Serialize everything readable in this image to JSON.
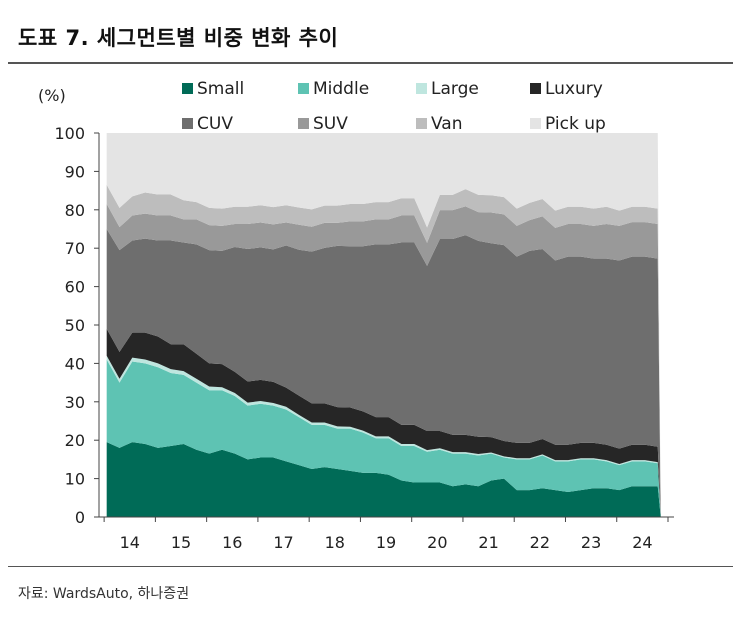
{
  "title": "도표 7. 세그먼트별 비중 변화 추이",
  "source": "자료: WardsAuto, 하나증권",
  "chart_data": {
    "type": "area",
    "stacked": true,
    "ylabel": "(%)",
    "ylim": [
      0,
      100
    ],
    "yticks": [
      0,
      10,
      20,
      30,
      40,
      50,
      60,
      70,
      80,
      90,
      100
    ],
    "xticks": [
      "14",
      "15",
      "16",
      "17",
      "18",
      "19",
      "20",
      "21",
      "22",
      "23",
      "24"
    ],
    "x": [
      2014.0,
      2014.25,
      2014.5,
      2014.75,
      2015.0,
      2015.25,
      2015.5,
      2015.75,
      2016.0,
      2016.25,
      2016.5,
      2016.75,
      2017.0,
      2017.25,
      2017.5,
      2017.75,
      2018.0,
      2018.25,
      2018.5,
      2018.75,
      2019.0,
      2019.25,
      2019.5,
      2019.75,
      2020.0,
      2020.25,
      2020.5,
      2020.75,
      2021.0,
      2021.25,
      2021.5,
      2021.75,
      2022.0,
      2022.25,
      2022.5,
      2022.75,
      2023.0,
      2023.25,
      2023.5,
      2023.75,
      2024.0,
      2024.25,
      2024.5,
      2024.75
    ],
    "legend": {
      "placement": "top",
      "columns": 4
    },
    "grid": false,
    "series": [
      {
        "name": "Small",
        "color": "#006b57",
        "values": [
          19.5,
          18.0,
          19.5,
          19.0,
          18.0,
          18.5,
          19.0,
          17.5,
          16.5,
          17.5,
          16.5,
          15.0,
          15.5,
          15.5,
          14.5,
          13.5,
          12.5,
          13.0,
          12.5,
          12.0,
          11.5,
          11.5,
          11.0,
          9.5,
          9.0,
          9.0,
          9.0,
          8.0,
          8.5,
          8.0,
          9.5,
          10.0,
          7.0,
          7.0,
          7.5,
          7.0,
          6.5,
          7.0,
          7.5,
          7.5,
          7.0,
          8.0,
          8.0,
          8.0
        ]
      },
      {
        "name": "Middle",
        "color": "#5ec3b3",
        "values": [
          21.5,
          17.0,
          21.0,
          21.0,
          21.0,
          19.0,
          18.0,
          17.5,
          16.5,
          15.5,
          15.0,
          14.0,
          14.0,
          13.5,
          13.5,
          12.5,
          11.5,
          11.0,
          10.5,
          11.0,
          10.5,
          9.0,
          9.5,
          9.0,
          9.5,
          8.0,
          8.5,
          8.5,
          8.0,
          8.0,
          7.0,
          5.5,
          8.0,
          8.0,
          8.5,
          7.5,
          8.0,
          8.0,
          7.5,
          7.0,
          6.5,
          6.5,
          6.5,
          6.0
        ]
      },
      {
        "name": "Large",
        "color": "#bfe6df",
        "values": [
          1.0,
          1.0,
          1.0,
          1.0,
          1.0,
          1.0,
          1.0,
          1.0,
          1.0,
          0.8,
          0.8,
          0.8,
          0.7,
          0.7,
          0.7,
          0.6,
          0.6,
          0.6,
          0.6,
          0.5,
          0.5,
          0.5,
          0.5,
          0.5,
          0.5,
          0.4,
          0.4,
          0.4,
          0.4,
          0.4,
          0.3,
          0.3,
          0.3,
          0.3,
          0.3,
          0.3,
          0.3,
          0.3,
          0.3,
          0.3,
          0.3,
          0.3,
          0.3,
          0.3
        ]
      },
      {
        "name": "Luxury",
        "color": "#262626",
        "values": [
          7.0,
          7.0,
          6.5,
          7.0,
          7.0,
          6.5,
          7.0,
          6.5,
          6.0,
          6.0,
          5.5,
          5.5,
          5.5,
          5.5,
          5.0,
          5.0,
          5.0,
          5.0,
          5.0,
          5.0,
          5.0,
          5.0,
          5.0,
          5.0,
          5.0,
          5.0,
          4.5,
          4.5,
          4.5,
          4.5,
          4.0,
          4.0,
          4.0,
          4.0,
          4.0,
          4.0,
          4.0,
          4.0,
          4.0,
          4.0,
          4.0,
          4.0,
          4.0,
          4.0
        ]
      },
      {
        "name": "CUV",
        "color": "#6e6e6e",
        "values": [
          26.0,
          26.5,
          24.0,
          24.5,
          25.0,
          27.0,
          26.5,
          28.5,
          29.5,
          29.5,
          32.5,
          34.5,
          34.5,
          34.5,
          37.0,
          38.0,
          39.5,
          40.5,
          42.0,
          42.0,
          43.0,
          45.0,
          45.0,
          47.5,
          47.5,
          43.0,
          50.0,
          51.0,
          52.0,
          51.0,
          50.5,
          51.0,
          48.5,
          50.0,
          49.5,
          48.0,
          49.0,
          48.5,
          48.0,
          48.5,
          49.0,
          49.0,
          49.0,
          49.0
        ]
      },
      {
        "name": "SUV",
        "color": "#999999",
        "values": [
          6.5,
          6.0,
          6.5,
          6.5,
          6.5,
          6.5,
          6.0,
          6.5,
          6.5,
          6.5,
          6.0,
          6.5,
          6.5,
          6.5,
          6.0,
          6.5,
          6.5,
          6.5,
          6.0,
          6.5,
          6.5,
          6.5,
          6.5,
          7.0,
          7.0,
          6.0,
          7.5,
          7.5,
          7.5,
          7.5,
          8.0,
          8.0,
          8.0,
          8.0,
          8.5,
          8.5,
          8.5,
          8.5,
          8.5,
          9.0,
          9.0,
          9.0,
          9.0,
          9.0
        ]
      },
      {
        "name": "Van",
        "color": "#bdbdbd",
        "values": [
          5.0,
          5.0,
          5.0,
          5.5,
          5.5,
          5.5,
          5.0,
          4.5,
          4.5,
          4.5,
          4.5,
          4.5,
          4.5,
          4.5,
          4.5,
          4.5,
          4.5,
          4.5,
          4.5,
          4.5,
          4.5,
          4.5,
          4.5,
          4.5,
          4.5,
          4.0,
          4.0,
          4.0,
          4.5,
          4.5,
          4.5,
          4.5,
          4.5,
          4.5,
          4.5,
          4.5,
          4.5,
          4.5,
          4.5,
          4.5,
          4.0,
          4.0,
          4.0,
          4.0
        ]
      },
      {
        "name": "Pick up",
        "color": "#e4e4e4",
        "values": [
          13.5,
          19.5,
          16.5,
          15.5,
          16.0,
          16.0,
          17.5,
          18.0,
          19.5,
          19.7,
          19.2,
          19.2,
          18.8,
          19.3,
          18.8,
          19.4,
          19.9,
          18.9,
          18.9,
          18.5,
          18.5,
          18.0,
          18.0,
          17.0,
          17.0,
          24.6,
          16.1,
          16.1,
          14.6,
          16.1,
          16.2,
          16.7,
          19.7,
          18.2,
          17.2,
          20.2,
          19.2,
          19.2,
          19.7,
          19.2,
          20.2,
          19.2,
          19.2,
          19.7
        ]
      }
    ]
  }
}
